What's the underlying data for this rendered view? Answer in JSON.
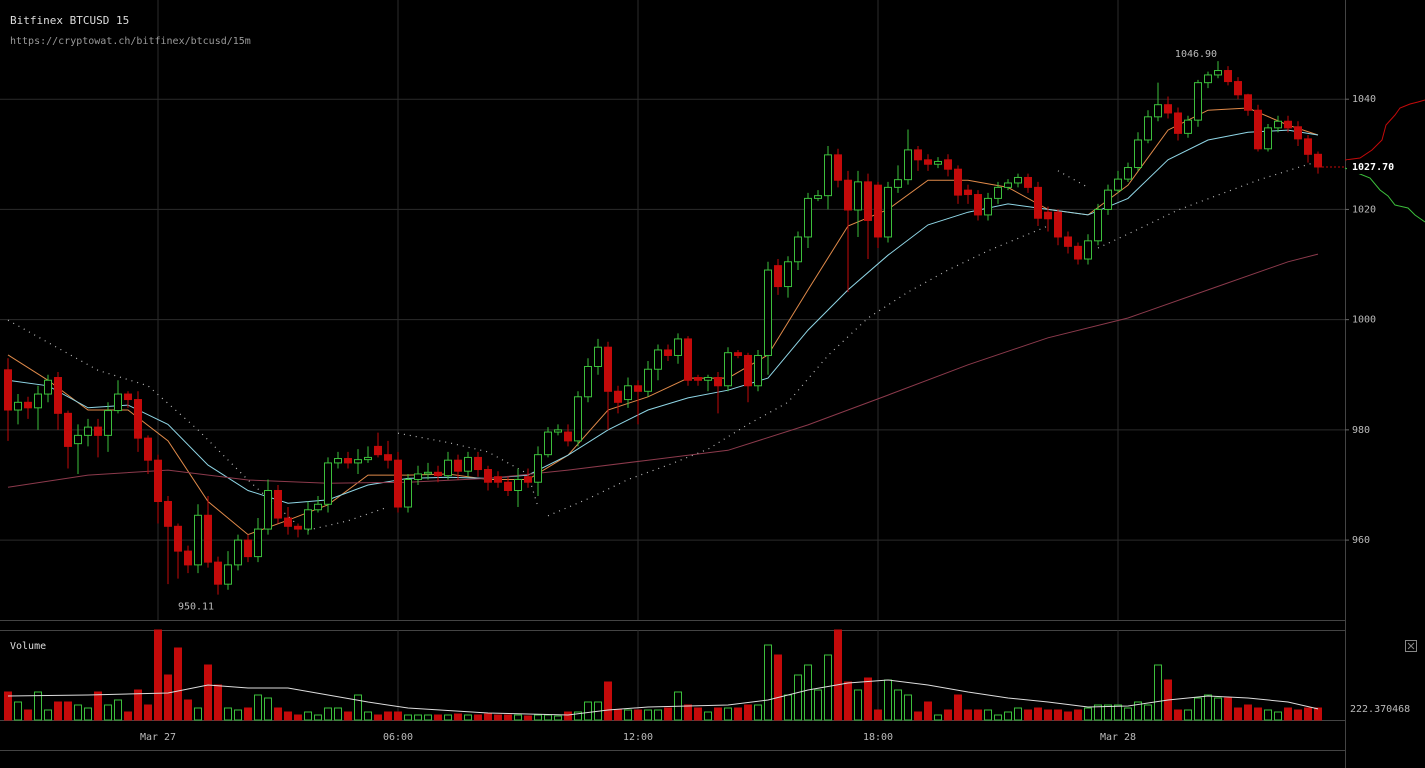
{
  "chart_data": [
    {
      "type": "candlestick",
      "title": "Bitfinex BTCUSD 15",
      "subtitle": "https://cryptowat.ch/bitfinex/btcusd/15m",
      "up_color": "#3cbf3c",
      "down_color": "#c40a0a",
      "grid": true,
      "xlim": [
        -0.8,
        133.7
      ],
      "xticks": [
        {
          "value": 15,
          "label": "Mar 27"
        },
        {
          "value": 39,
          "label": "06:00"
        },
        {
          "value": 63,
          "label": "12:00"
        },
        {
          "value": 87,
          "label": "18:00"
        },
        {
          "value": 111,
          "label": "Mar 28"
        }
      ],
      "ylim": [
        945.5,
        1058
      ],
      "yticks": [
        960,
        980,
        1000,
        1020,
        1040
      ],
      "open": [
        990.9,
        983.6,
        985,
        984,
        986.5,
        989.5,
        983,
        977.5,
        979,
        980.5,
        979,
        983.5,
        986.5,
        985.5,
        978.5,
        974.5,
        967,
        962.5,
        958,
        955.5,
        964.5,
        956,
        952,
        955.5,
        960,
        957,
        962,
        969,
        964,
        962.5,
        962,
        965.5,
        966.5,
        974,
        974.8,
        974,
        974.6,
        977,
        975.5,
        974.5,
        966,
        971,
        972,
        972.3,
        971.7,
        974.5,
        972.5,
        975,
        972.8,
        971.5,
        970.5,
        969,
        971.5,
        970.5,
        975.5,
        979.6,
        979.6,
        978,
        986,
        991.5,
        995,
        987,
        985.5,
        988,
        987,
        991,
        994.5,
        993.5,
        996.5,
        989.5,
        989,
        989.5,
        988,
        994,
        993.5,
        988,
        993.5,
        1009.8,
        1006,
        1010.5,
        1015,
        1022,
        1022.5,
        1029.9,
        1025.3,
        1019.9,
        1025,
        1024.4,
        1015,
        1024,
        1025.4,
        1030.8,
        1029,
        1028.2,
        1029,
        1027.3,
        1023.5,
        1022.7,
        1019,
        1022,
        1024,
        1024.8,
        1025.8,
        1024,
        1019.5,
        1019.5,
        1015,
        1013.3,
        1011,
        1014.3,
        1020,
        1023.5,
        1025.5,
        1027.6,
        1032.6,
        1036.8,
        1039,
        1037.5,
        1033.8,
        1036.2,
        1043,
        1044.4,
        1045.2,
        1043.2,
        1040.8,
        1038,
        1031,
        1034.8,
        1036,
        1035,
        1032.8,
        1030
      ],
      "high": [
        993,
        986.5,
        986,
        988,
        990,
        990.5,
        983.5,
        981,
        982,
        982,
        985,
        989,
        987,
        987,
        979,
        975.5,
        968,
        963,
        959,
        966.5,
        968,
        957,
        958,
        961,
        961,
        964,
        971,
        970,
        966,
        963,
        967,
        968,
        975,
        976,
        976,
        976.5,
        977,
        979.5,
        978,
        976,
        972,
        973.5,
        974,
        973.5,
        976,
        975.5,
        976,
        976,
        973.5,
        972.5,
        971.5,
        973,
        973,
        977,
        980.5,
        981,
        981,
        987,
        993,
        996.5,
        996,
        988,
        989.5,
        989,
        992.5,
        995.5,
        995.5,
        997.5,
        997,
        990,
        990,
        990.5,
        995,
        994.5,
        994,
        994.5,
        1010.5,
        1011,
        1011.5,
        1016,
        1023,
        1023.5,
        1031.5,
        1031,
        1027,
        1027,
        1026.5,
        1025,
        1025,
        1028,
        1034.5,
        1031.5,
        1030,
        1029.5,
        1030,
        1028,
        1024.5,
        1023.5,
        1023,
        1025,
        1025.5,
        1026.5,
        1026.5,
        1025,
        1020.5,
        1020,
        1016,
        1014,
        1015.5,
        1021,
        1024.5,
        1027,
        1028.5,
        1034,
        1038,
        1043,
        1040.5,
        1038.5,
        1037,
        1043.5,
        1045,
        1046.9,
        1046,
        1044,
        1041,
        1039,
        1035.5,
        1037,
        1037,
        1036,
        1033.5,
        1030.5
      ],
      "low": [
        978,
        981,
        982,
        980,
        985,
        980,
        973,
        972,
        977,
        975,
        976,
        983,
        984,
        976,
        972,
        963,
        952,
        953,
        954,
        954,
        955,
        950.11,
        951,
        954.5,
        956,
        956,
        961,
        963,
        961,
        960.5,
        961,
        965,
        965,
        973,
        973,
        972,
        974,
        975,
        973,
        965,
        965,
        970,
        971,
        970.5,
        971,
        971,
        971.5,
        971.5,
        969,
        969.5,
        968,
        966,
        969.5,
        968,
        975,
        979,
        977,
        977,
        985,
        990,
        980,
        983,
        984,
        981,
        986,
        989,
        992.5,
        992,
        988,
        988,
        987,
        983,
        987,
        993,
        985,
        987,
        990,
        1004.5,
        1004,
        1009,
        1013,
        1021.5,
        1020,
        1024,
        1005,
        1015,
        1011,
        1013,
        1014,
        1023,
        1024.5,
        1027,
        1027,
        1027.5,
        1026,
        1021,
        1021,
        1018,
        1018,
        1021,
        1023.5,
        1024,
        1023,
        1017,
        1016,
        1013.5,
        1012,
        1010,
        1010,
        1013.5,
        1019,
        1023,
        1025,
        1027,
        1032,
        1036,
        1036.5,
        1032.5,
        1033,
        1035,
        1042,
        1043.8,
        1042.5,
        1040,
        1037,
        1030.5,
        1030.5,
        1034,
        1034,
        1031.5,
        1028.5,
        1026.5
      ],
      "close": [
        983.6,
        985,
        984,
        986.5,
        989,
        983,
        977,
        979,
        980.5,
        979,
        983.5,
        986.5,
        985.5,
        978.5,
        974.5,
        967,
        962.5,
        958,
        955.5,
        964.5,
        956,
        952,
        955.5,
        960,
        957,
        962,
        969,
        964,
        962.5,
        962,
        965.5,
        966.5,
        974,
        974.8,
        974,
        974.6,
        975,
        975.5,
        974.5,
        966,
        971,
        972,
        972.3,
        971.7,
        974.5,
        972.5,
        975,
        972.8,
        970.5,
        970.5,
        969,
        971,
        970.5,
        975.5,
        979.6,
        980,
        978,
        986,
        991.5,
        995,
        987,
        985,
        988,
        987,
        991,
        994.5,
        993.5,
        996.5,
        989,
        989,
        989.5,
        988,
        994,
        993.5,
        988,
        993.5,
        1009,
        1006,
        1010.5,
        1015,
        1022,
        1022.5,
        1029.9,
        1025.3,
        1019.9,
        1025,
        1018,
        1015,
        1024,
        1025.4,
        1030.8,
        1029,
        1028.2,
        1028.7,
        1027.3,
        1022.6,
        1022.7,
        1019,
        1022,
        1024,
        1024.8,
        1025.8,
        1024,
        1018.4,
        1018.3,
        1015,
        1013.3,
        1011,
        1014.3,
        1020,
        1023.5,
        1025.5,
        1027.6,
        1032.6,
        1036.8,
        1039,
        1037.5,
        1033.8,
        1036.2,
        1043,
        1044.4,
        1045.2,
        1043.2,
        1040.8,
        1038,
        1031,
        1034.8,
        1036,
        1034.8,
        1032.8,
        1030,
        1027.7
      ],
      "series": [
        {
          "color": "#e08a4a",
          "style": "solid",
          "x": [
            0,
            4,
            8,
            12,
            16,
            20,
            24,
            28,
            32,
            36,
            40,
            44,
            48,
            52,
            56,
            60,
            64,
            68,
            72,
            76,
            80,
            84,
            88,
            92,
            96,
            100,
            104,
            108,
            112,
            116,
            120,
            124,
            128,
            131
          ],
          "values": [
            993.6,
            989,
            983.6,
            983.6,
            978,
            967,
            961,
            963.6,
            966.4,
            971.8,
            971.8,
            972,
            971,
            971,
            975.4,
            983.6,
            986,
            989.4,
            989.4,
            993.6,
            1005.4,
            1017,
            1020,
            1025.3,
            1025.3,
            1024,
            1020,
            1019,
            1024.4,
            1034.4,
            1038,
            1038.4,
            1035.3,
            1033.5
          ]
        },
        {
          "color": "#8fd6e6",
          "style": "solid",
          "x": [
            0,
            4,
            8,
            12,
            16,
            20,
            24,
            28,
            32,
            36,
            40,
            44,
            48,
            52,
            56,
            60,
            64,
            68,
            72,
            76,
            80,
            84,
            88,
            92,
            96,
            100,
            104,
            108,
            112,
            116,
            120,
            124,
            128,
            131
          ],
          "values": [
            989,
            988,
            984,
            984.5,
            981,
            973.6,
            969,
            966.7,
            967.3,
            970,
            971.2,
            971.4,
            971.2,
            971.8,
            975.4,
            980,
            983.6,
            985.8,
            987.2,
            989.4,
            998.1,
            1005.4,
            1011.7,
            1017.2,
            1019.5,
            1021,
            1020,
            1019,
            1022,
            1029,
            1032.6,
            1034,
            1034.4,
            1033.5
          ]
        },
        {
          "color": "#8c3a4c",
          "style": "solid",
          "x": [
            0,
            8,
            16,
            24,
            32,
            40,
            48,
            56,
            64,
            72,
            80,
            88,
            96,
            104,
            112,
            120,
            128,
            131
          ],
          "values": [
            969.6,
            971.8,
            972.7,
            970.9,
            970.3,
            970.5,
            971.2,
            972.7,
            974.5,
            976.3,
            980.9,
            986.3,
            991.8,
            996.7,
            1000.3,
            1005.4,
            1010.5,
            1011.9
          ]
        },
        {
          "color": "#bbbbbb",
          "style": "dotted",
          "x": [
            0,
            9,
            14,
            19,
            24,
            29
          ],
          "values": [
            999.9,
            990.8,
            988,
            980,
            970.9,
            962.7
          ]
        },
        {
          "color": "#bbbbbb",
          "style": "dotted",
          "x": [
            30,
            34,
            38
          ],
          "values": [
            961.8,
            963.5,
            966
          ]
        },
        {
          "color": "#bbbbbb",
          "style": "dotted",
          "x": [
            39,
            44,
            48,
            52,
            53
          ],
          "values": [
            979.4,
            977.7,
            976,
            972,
            966
          ]
        },
        {
          "color": "#bbbbbb",
          "style": "dotted",
          "x": [
            54,
            58,
            62,
            66,
            70,
            74,
            78,
            82,
            86,
            90,
            94,
            98,
            102,
            104
          ],
          "values": [
            964.4,
            967.5,
            971,
            973.6,
            976.5,
            981,
            985,
            993.5,
            1000.3,
            1005,
            1009,
            1012.5,
            1015.5,
            1017
          ]
        },
        {
          "color": "#bbbbbb",
          "style": "dotted",
          "x": [
            105,
            108
          ],
          "values": [
            1027,
            1024
          ]
        },
        {
          "color": "#bbbbbb",
          "style": "dotted",
          "x": [
            109,
            113,
            117,
            121,
            125,
            129,
            131
          ],
          "values": [
            1013,
            1016.4,
            1019.9,
            1022.6,
            1025.3,
            1027.6,
            1028.7
          ]
        }
      ],
      "annotations": [
        {
          "index": 121,
          "value": 1046.9,
          "label": "1046.90"
        },
        {
          "index": 21,
          "value": 950.11,
          "label": "950.11"
        }
      ],
      "last_price": {
        "value": 1027.7,
        "label": "1027.70"
      }
    },
    {
      "type": "bar",
      "title": "Volume",
      "ylim": [
        0,
        1800
      ],
      "values": [
        560,
        360,
        200,
        560,
        200,
        360,
        360,
        300,
        240,
        560,
        300,
        400,
        160,
        600,
        300,
        1800,
        900,
        1440,
        400,
        240,
        1100,
        700,
        240,
        200,
        240,
        500,
        440,
        240,
        160,
        100,
        160,
        100,
        240,
        240,
        160,
        500,
        160,
        100,
        160,
        160,
        100,
        100,
        100,
        100,
        100,
        120,
        100,
        100,
        120,
        100,
        100,
        100,
        80,
        100,
        100,
        80,
        160,
        160,
        360,
        360,
        760,
        200,
        200,
        200,
        200,
        200,
        240,
        560,
        300,
        240,
        160,
        240,
        240,
        240,
        300,
        300,
        1500,
        1300,
        500,
        900,
        1100,
        600,
        1300,
        1800,
        760,
        600,
        840,
        200,
        800,
        600,
        500,
        160,
        360,
        100,
        200,
        500,
        200,
        200,
        200,
        100,
        160,
        240,
        200,
        240,
        200,
        200,
        160,
        200,
        240,
        300,
        300,
        300,
        240,
        360,
        300,
        1100,
        800,
        200,
        200,
        440,
        500,
        440,
        440,
        240,
        300,
        240,
        200,
        160,
        240,
        200,
        240,
        240
      ],
      "series": [
        {
          "color": "#dddddd",
          "x": [
            0,
            8,
            16,
            20,
            24,
            28,
            32,
            36,
            40,
            48,
            56,
            60,
            64,
            72,
            76,
            80,
            84,
            88,
            92,
            96,
            100,
            104,
            108,
            112,
            116,
            120,
            124,
            128,
            131
          ],
          "values": [
            480,
            500,
            540,
            700,
            640,
            640,
            500,
            360,
            240,
            140,
            100,
            200,
            260,
            300,
            400,
            600,
            740,
            800,
            700,
            560,
            440,
            360,
            260,
            280,
            400,
            480,
            440,
            360,
            222.370468
          ]
        }
      ]
    }
  ]
}
